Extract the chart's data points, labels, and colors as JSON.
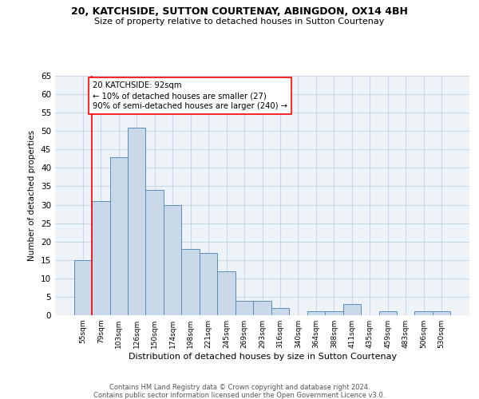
{
  "title1": "20, KATCHSIDE, SUTTON COURTENAY, ABINGDON, OX14 4BH",
  "title2": "Size of property relative to detached houses in Sutton Courtenay",
  "xlabel": "Distribution of detached houses by size in Sutton Courtenay",
  "ylabel": "Number of detached properties",
  "categories": [
    "55sqm",
    "79sqm",
    "103sqm",
    "126sqm",
    "150sqm",
    "174sqm",
    "198sqm",
    "221sqm",
    "245sqm",
    "269sqm",
    "293sqm",
    "316sqm",
    "340sqm",
    "364sqm",
    "388sqm",
    "411sqm",
    "435sqm",
    "459sqm",
    "483sqm",
    "506sqm",
    "530sqm"
  ],
  "values": [
    15,
    31,
    43,
    51,
    34,
    30,
    18,
    17,
    12,
    4,
    4,
    2,
    0,
    1,
    1,
    3,
    0,
    1,
    0,
    1,
    1
  ],
  "bar_color": "#c9d9ea",
  "bar_edge_color": "#5b8db8",
  "grid_color": "#c8d8e8",
  "background_color": "#eef3f8",
  "annotation_box_text": "20 KATCHSIDE: 92sqm\n← 10% of detached houses are smaller (27)\n90% of semi-detached houses are larger (240) →",
  "red_line_x": 1,
  "ylim": [
    0,
    65
  ],
  "yticks": [
    0,
    5,
    10,
    15,
    20,
    25,
    30,
    35,
    40,
    45,
    50,
    55,
    60,
    65
  ],
  "footer1": "Contains HM Land Registry data © Crown copyright and database right 2024.",
  "footer2": "Contains public sector information licensed under the Open Government Licence v3.0."
}
